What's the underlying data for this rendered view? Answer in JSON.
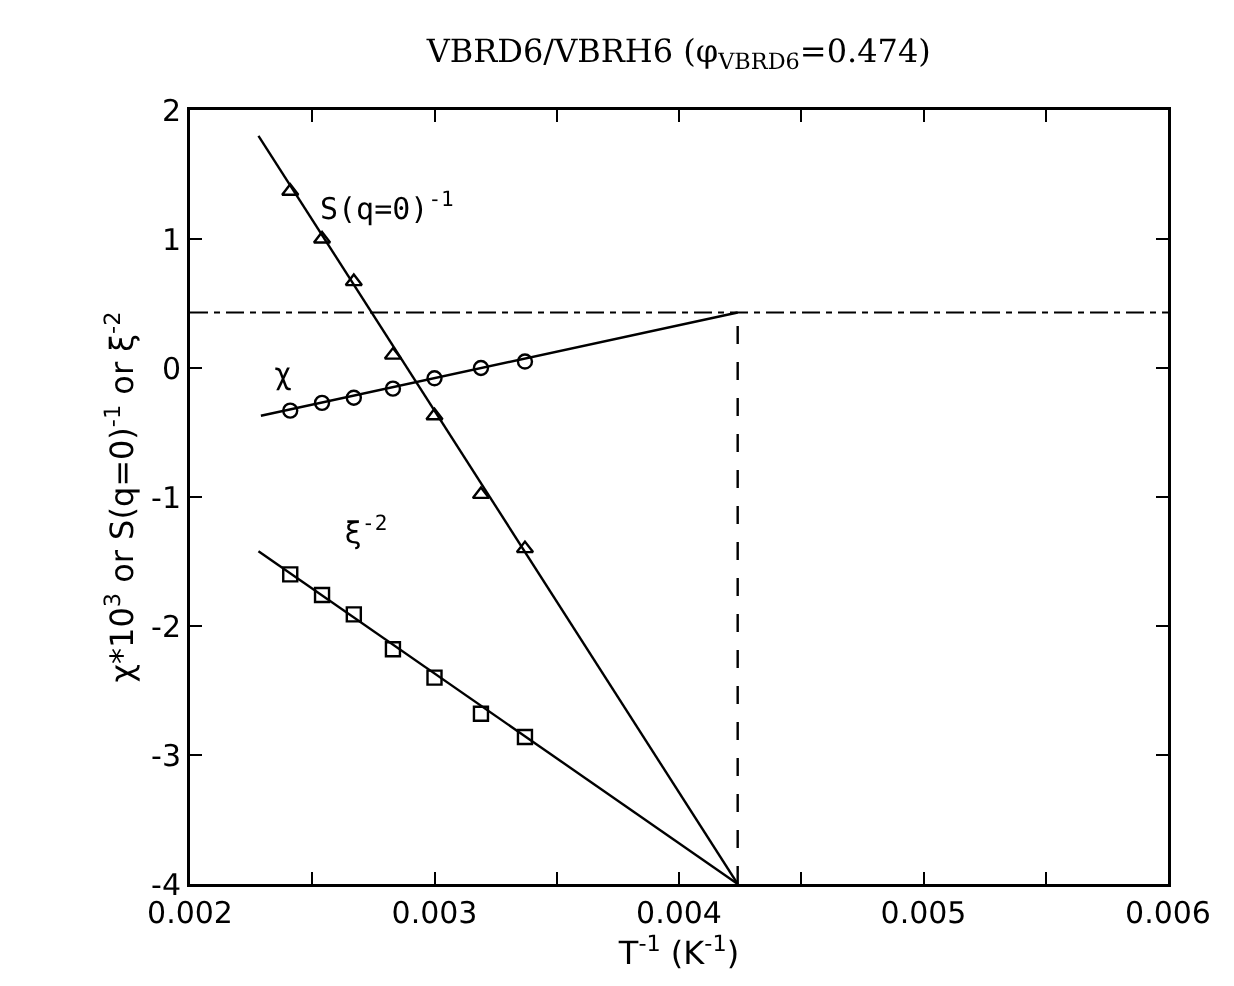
{
  "chart_data": {
    "type": "scatter",
    "title": "VBRD6/VBRH6 (φ$_{VBRD6}$=0.474)",
    "xlabel": "T$^{-1}$ (K$^{-1}$)",
    "ylabel": "χ*10$^{3}$ or S(q=0)$^{-1}$ or ξ$^{-2}$",
    "xlim": [
      0.002,
      0.006
    ],
    "ylim": [
      -4,
      2
    ],
    "xticks": [
      0.002,
      {
        "value": 0.0025,
        "label": null
      },
      0.003,
      {
        "value": 0.0035,
        "label": null
      },
      0.004,
      {
        "value": 0.0045,
        "label": null
      },
      0.005,
      {
        "value": 0.0055,
        "label": null
      },
      0.006
    ],
    "yticks": [
      -4,
      -3,
      -2,
      -1,
      0,
      1,
      2
    ],
    "grid": false,
    "series": [
      {
        "name": "S(q=0)$^{-1}$",
        "color": "#000000",
        "marker": "triangle",
        "x": [
          0.00241,
          0.00254,
          0.00267,
          0.00283,
          0.003,
          0.00319,
          0.00337
        ],
        "values": [
          1.37,
          1.0,
          0.67,
          0.1,
          -0.37,
          -0.98,
          -1.4
        ]
      },
      {
        "name": "χ",
        "color": "#000000",
        "marker": "circle",
        "x": [
          0.00241,
          0.00254,
          0.00267,
          0.00283,
          0.003,
          0.00319,
          0.00337
        ],
        "values": [
          -0.33,
          -0.27,
          -0.23,
          -0.16,
          -0.08,
          0.0,
          0.05
        ]
      },
      {
        "name": "ξ$^{-2}$",
        "color": "#000000",
        "marker": "square",
        "x": [
          0.00241,
          0.00254,
          0.00267,
          0.00283,
          0.003,
          0.00319,
          0.00337
        ],
        "values": [
          -1.6,
          -1.76,
          -1.91,
          -2.18,
          -2.4,
          -2.68,
          -2.86
        ]
      },
      {
        "type": "line",
        "color": "#000000",
        "marker": "none",
        "line_style": "solid",
        "x": [
          0.00228,
          0.00424
        ],
        "values": [
          1.8,
          -4
        ]
      },
      {
        "type": "line",
        "color": "#000000",
        "marker": "none",
        "line_style": "solid",
        "x": [
          0.00229,
          0.00424
        ],
        "values": [
          -0.37,
          0.43
        ]
      },
      {
        "type": "line",
        "color": "#000000",
        "marker": "none",
        "line_style": "solid",
        "x": [
          0.00228,
          0.00424
        ],
        "values": [
          -1.42,
          -4
        ]
      },
      {
        "type": "line",
        "color": "#000000",
        "marker": "none",
        "line_style": "dashed",
        "x": [
          0.00424,
          0.00424
        ],
        "values": [
          -4,
          0.43
        ]
      }
    ],
    "ref_lines": [
      {
        "axis": "y",
        "value": 0.43,
        "color": "#000000",
        "line_style": "dashdot"
      }
    ]
  }
}
